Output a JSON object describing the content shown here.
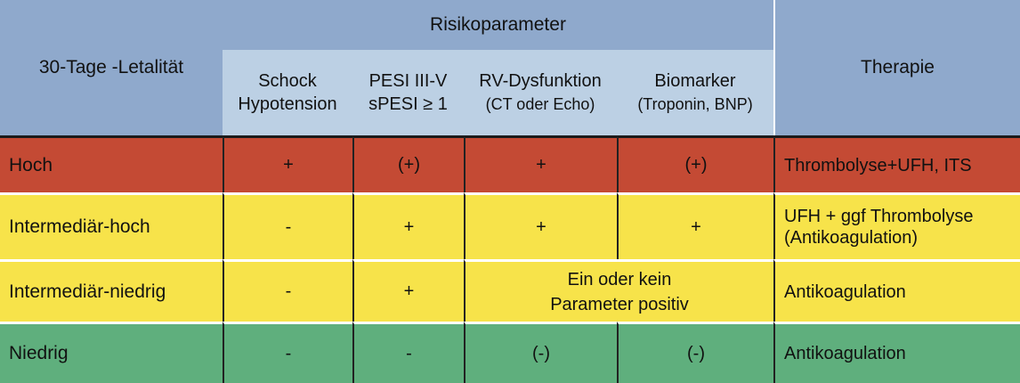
{
  "header": {
    "left": "30-Tage -Letalität",
    "group": "Risikoparameter",
    "right": "Therapie",
    "params": [
      {
        "line1": "Schock",
        "line2": "Hypotension"
      },
      {
        "line1": "PESI III-V",
        "line2": "sPESI ≥ 1"
      },
      {
        "line1": "RV-Dysfunktion",
        "line2": "(CT oder Echo)"
      },
      {
        "line1": "Biomarker",
        "line2": "(Troponin, BNP)"
      }
    ]
  },
  "rows": [
    {
      "label": "Hoch",
      "c1": "+",
      "c2": "(+)",
      "c3": "+",
      "c4": "(+)",
      "therapy1": "Thrombolyse+UFH, ITS",
      "therapy2": ""
    },
    {
      "label": "Intermediär-hoch",
      "c1": "-",
      "c2": "+",
      "c3": "+",
      "c4": "+",
      "therapy1": "UFH + ggf Thrombolyse",
      "therapy2": "(Antikoagulation)"
    },
    {
      "label": "Intermediär-niedrig",
      "c1": "-",
      "c2": "+",
      "merged1": "Ein oder kein",
      "merged2": "Parameter positiv",
      "therapy1": "Antikoagulation",
      "therapy2": ""
    },
    {
      "label": "Niedrig",
      "c1": "-",
      "c2": "-",
      "c3": "(-)",
      "c4": "(-)",
      "therapy1": "Antikoagulation",
      "therapy2": ""
    }
  ],
  "colors": {
    "header": "#8fa9cc",
    "param_header": "#bcd0e4",
    "high": "#c44a34",
    "intermediate": "#f7e34a",
    "low": "#5faf7d"
  }
}
